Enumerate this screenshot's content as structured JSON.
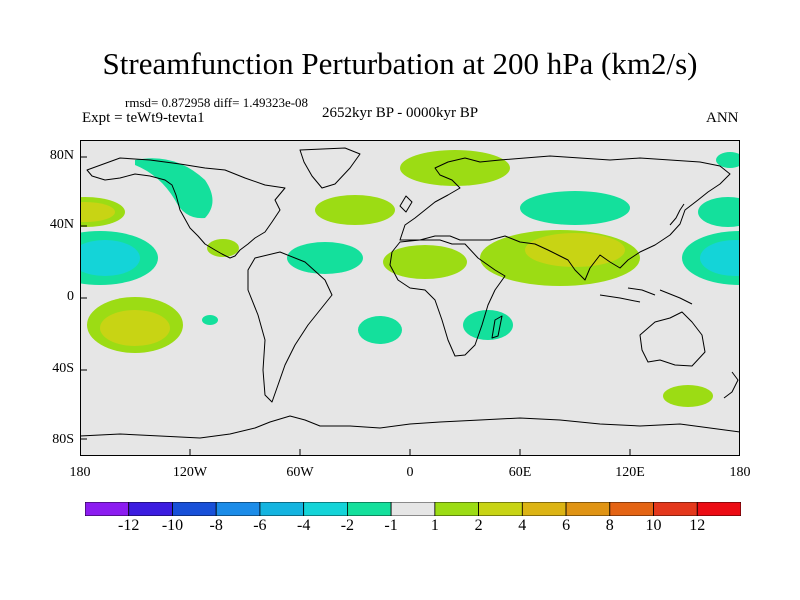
{
  "title": "Streamfunction Perturbation at 200 hPa (km2/s)",
  "stats": "rmsd= 0.872958 diff= 1.49323e-08",
  "experiment": "Expt = teWt9-tevta1",
  "period": "2652kyr BP - 0000kyr BP",
  "season": "ANN",
  "y_ticks": [
    "80N",
    "40N",
    "0",
    "40S",
    "80S"
  ],
  "x_ticks": [
    "180",
    "120W",
    "60W",
    "0",
    "60E",
    "120E",
    "180"
  ],
  "colorbar": {
    "colors": [
      "#8c1cf0",
      "#3c1ce0",
      "#1850d8",
      "#1c8ce8",
      "#14b4e0",
      "#14d4d8",
      "#14e09c",
      "#e6e6e6",
      "#9cdc14",
      "#c8d414",
      "#dcb414",
      "#e09414",
      "#e46414",
      "#e4381c",
      "#ec0c14"
    ],
    "labels": [
      "-12",
      "-10",
      "-8",
      "-6",
      "-4",
      "-2",
      "-1",
      "1",
      "2",
      "4",
      "6",
      "8",
      "10",
      "12"
    ]
  },
  "map_data": {
    "type": "contour-map",
    "lon_range": [
      -180,
      180
    ],
    "lat_range": [
      -90,
      90
    ],
    "background_value": "between -1 and 1",
    "anomalies": [
      {
        "lon": -150,
        "lat": 45,
        "value": 4
      },
      {
        "lon": -150,
        "lat": 18,
        "value": -4
      },
      {
        "lon": -148,
        "lat": -15,
        "value": 4
      },
      {
        "lon": -118,
        "lat": 68,
        "value": -1
      },
      {
        "lon": -100,
        "lat": 25,
        "value": 1
      },
      {
        "lon": -110,
        "lat": -10,
        "value": -1
      },
      {
        "lon": -55,
        "lat": 25,
        "value": -1
      },
      {
        "lon": -35,
        "lat": 40,
        "value": 1
      },
      {
        "lon": -28,
        "lat": -15,
        "value": -1
      },
      {
        "lon": 5,
        "lat": 22,
        "value": 1
      },
      {
        "lon": 40,
        "lat": 70,
        "value": 1
      },
      {
        "lon": 78,
        "lat": 42,
        "value": -1
      },
      {
        "lon": 75,
        "lat": 22,
        "value": 4
      },
      {
        "lon": 38,
        "lat": -12,
        "value": -1
      },
      {
        "lon": 165,
        "lat": 20,
        "value": -2
      },
      {
        "lon": 170,
        "lat": 42,
        "value": -1
      },
      {
        "lon": 170,
        "lat": 72,
        "value": -1
      },
      {
        "lon": 148,
        "lat": -45,
        "value": 1
      }
    ]
  }
}
